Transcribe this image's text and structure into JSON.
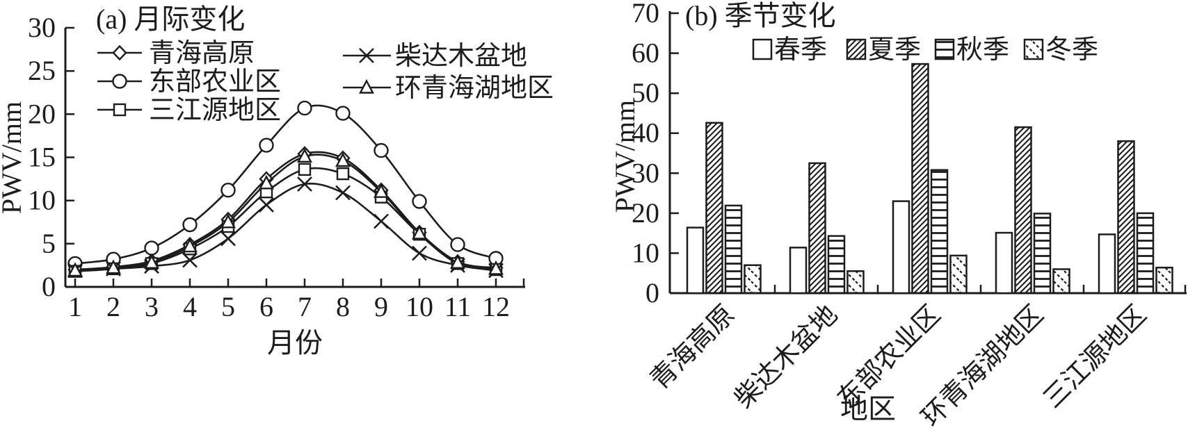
{
  "figure": {
    "background": "#ffffff",
    "ink": "#1c1c1c"
  },
  "chart_data": [
    {
      "id": "a",
      "type": "line",
      "title": "(a) 月际变化",
      "xlabel": "月份",
      "ylabel": "PWV/mm",
      "x": [
        1,
        2,
        3,
        4,
        5,
        6,
        7,
        8,
        9,
        10,
        11,
        12
      ],
      "xticks": [
        "1",
        "2",
        "3",
        "4",
        "5",
        "6",
        "7",
        "8",
        "9",
        "10",
        "11",
        "12"
      ],
      "ylim": [
        0,
        30
      ],
      "yticks": [
        0,
        5,
        10,
        15,
        20,
        25,
        30
      ],
      "grid": false,
      "legend_position": "upper left, two columns",
      "series": [
        {
          "name": "青海高原",
          "marker": "diamond",
          "values": [
            2.0,
            2.3,
            3.0,
            4.9,
            7.8,
            12.5,
            15.4,
            14.9,
            11.2,
            6.3,
            2.9,
            2.2
          ]
        },
        {
          "name": "东部农业区",
          "marker": "circle",
          "values": [
            2.7,
            3.2,
            4.5,
            7.2,
            11.2,
            16.4,
            20.7,
            20.1,
            15.8,
            9.9,
            4.9,
            3.3
          ]
        },
        {
          "name": "三江源地区",
          "marker": "square",
          "values": [
            1.8,
            2.1,
            2.7,
            4.4,
            7.0,
            11.0,
            13.6,
            13.1,
            10.4,
            6.1,
            2.7,
            2.0
          ]
        },
        {
          "name": "柴达木盆地",
          "marker": "x",
          "values": [
            1.9,
            2.1,
            2.4,
            3.1,
            5.6,
            9.5,
            11.9,
            10.9,
            7.6,
            3.9,
            2.5,
            1.9
          ]
        },
        {
          "name": "环青海湖地区",
          "marker": "triangle",
          "values": [
            1.9,
            2.2,
            2.8,
            4.7,
            7.5,
            12.0,
            15.1,
            14.6,
            11.0,
            6.2,
            2.8,
            2.1
          ]
        }
      ]
    },
    {
      "id": "b",
      "type": "bar",
      "title": "(b) 季节变化",
      "xlabel": "地区",
      "ylabel": "PWV/mm",
      "categories": [
        "青海高原",
        "柴达木盆地",
        "东部农业区",
        "环青海湖地区",
        "三江源地区"
      ],
      "ylim": [
        0,
        70
      ],
      "yticks": [
        0,
        10,
        20,
        30,
        40,
        50,
        60,
        70
      ],
      "grid": false,
      "legend_position": "top row",
      "series": [
        {
          "name": "春季",
          "pattern": "plain",
          "values": [
            16.4,
            11.4,
            23.0,
            15.1,
            14.7
          ]
        },
        {
          "name": "夏季",
          "pattern": "diagonal",
          "values": [
            42.6,
            32.5,
            57.3,
            41.5,
            38.0
          ]
        },
        {
          "name": "秋季",
          "pattern": "horizontal",
          "values": [
            21.9,
            14.3,
            30.8,
            19.9,
            20.0
          ]
        },
        {
          "name": "冬季",
          "pattern": "sparse-diagonal",
          "values": [
            7.0,
            5.5,
            9.4,
            6.0,
            6.4
          ]
        }
      ]
    }
  ]
}
